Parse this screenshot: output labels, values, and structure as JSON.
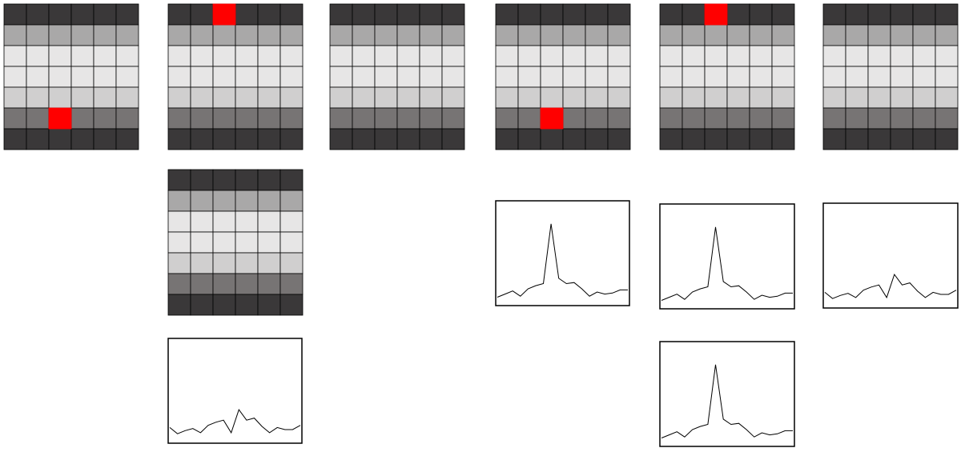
{
  "colors": {
    "row_colors": [
      "#3a3839",
      "#a9a8a8",
      "#e7e6e6",
      "#e7e6e6",
      "#d0cfcf",
      "#777474",
      "#3a3839"
    ],
    "highlight": "#ff0000",
    "grid_line": "#000000",
    "background": "#ffffff",
    "plot_line": "#000000"
  },
  "grid_layout": {
    "rows": 7,
    "cols": 6
  },
  "grids": [
    {
      "id": "grid-1",
      "highlight": {
        "row": 5,
        "col": 2
      }
    },
    {
      "id": "grid-2",
      "highlight": {
        "row": 0,
        "col": 2
      }
    },
    {
      "id": "grid-3",
      "highlight": null
    },
    {
      "id": "grid-4",
      "highlight": {
        "row": 5,
        "col": 2
      }
    },
    {
      "id": "grid-5",
      "highlight": {
        "row": 0,
        "col": 2
      }
    },
    {
      "id": "grid-6",
      "highlight": null
    },
    {
      "id": "grid-7",
      "highlight": null
    }
  ],
  "plots": [
    {
      "id": "plot-1",
      "shape": "noisy"
    },
    {
      "id": "plot-2",
      "shape": "peak"
    },
    {
      "id": "plot-3",
      "shape": "peak"
    },
    {
      "id": "plot-4",
      "shape": "noisy"
    },
    {
      "id": "plot-5",
      "shape": "peak"
    }
  ],
  "traces": {
    "peak": [
      0.08,
      0.11,
      0.14,
      0.09,
      0.16,
      0.19,
      0.21,
      0.78,
      0.26,
      0.21,
      0.22,
      0.16,
      0.09,
      0.13,
      0.11,
      0.12,
      0.15,
      0.15
    ],
    "noisy": [
      0.15,
      0.09,
      0.12,
      0.14,
      0.1,
      0.17,
      0.2,
      0.22,
      0.1,
      0.32,
      0.22,
      0.24,
      0.16,
      0.1,
      0.15,
      0.13,
      0.13,
      0.17
    ]
  }
}
